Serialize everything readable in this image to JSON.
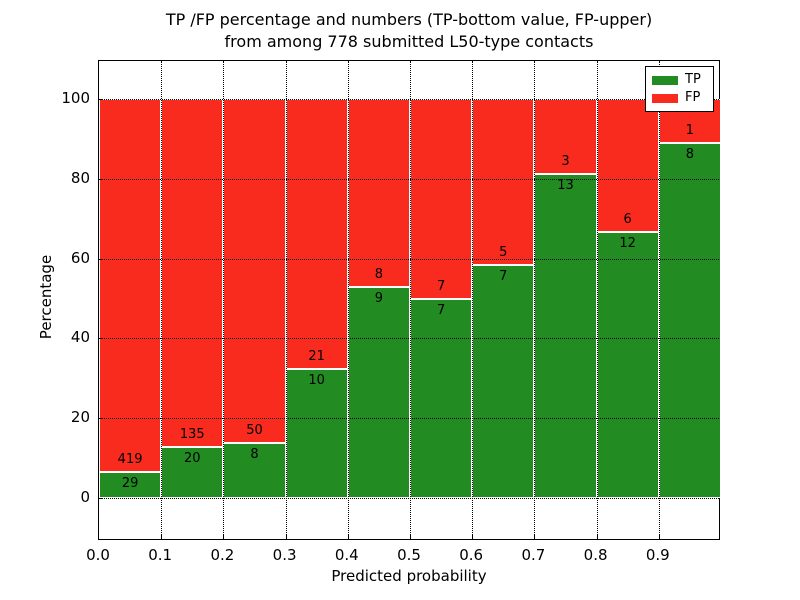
{
  "chart_data": {
    "type": "bar",
    "stacked": true,
    "normalized_to": 100,
    "title_line1": "TP /FP percentage and numbers (TP-bottom value, FP-upper)",
    "title_line2": "from among 778 submitted L50-type contacts",
    "xlabel": "Predicted probability",
    "ylabel": "Percentage",
    "x_tick_labels": [
      "0.0",
      "0.1",
      "0.2",
      "0.3",
      "0.4",
      "0.5",
      "0.6",
      "0.7",
      "0.8",
      "0.9"
    ],
    "y_ticks": [
      0,
      20,
      40,
      60,
      80,
      100
    ],
    "xlim": [
      0.0,
      1.0
    ],
    "ylim": [
      -10.8,
      109.5
    ],
    "grid": "dotted black, both axes",
    "colors": {
      "tp": "#228b22",
      "fp": "#f92a1e"
    },
    "legend": {
      "position": "upper right",
      "entries": [
        {
          "label": "TP",
          "color": "#228b22"
        },
        {
          "label": "FP",
          "color": "#f92a1e"
        }
      ]
    },
    "bars": [
      {
        "bin_start": 0.0,
        "bin_end": 0.1,
        "tp": 29,
        "fp": 419
      },
      {
        "bin_start": 0.1,
        "bin_end": 0.2,
        "tp": 20,
        "fp": 135
      },
      {
        "bin_start": 0.2,
        "bin_end": 0.3,
        "tp": 8,
        "fp": 50
      },
      {
        "bin_start": 0.3,
        "bin_end": 0.4,
        "tp": 10,
        "fp": 21
      },
      {
        "bin_start": 0.4,
        "bin_end": 0.5,
        "tp": 9,
        "fp": 8
      },
      {
        "bin_start": 0.5,
        "bin_end": 0.6,
        "tp": 7,
        "fp": 7
      },
      {
        "bin_start": 0.6,
        "bin_end": 0.7,
        "tp": 7,
        "fp": 5
      },
      {
        "bin_start": 0.7,
        "bin_end": 0.8,
        "tp": 13,
        "fp": 3
      },
      {
        "bin_start": 0.8,
        "bin_end": 0.9,
        "tp": 12,
        "fp": 6
      },
      {
        "bin_start": 0.9,
        "bin_end": 1.0,
        "tp": 8,
        "fp": 1
      }
    ]
  }
}
